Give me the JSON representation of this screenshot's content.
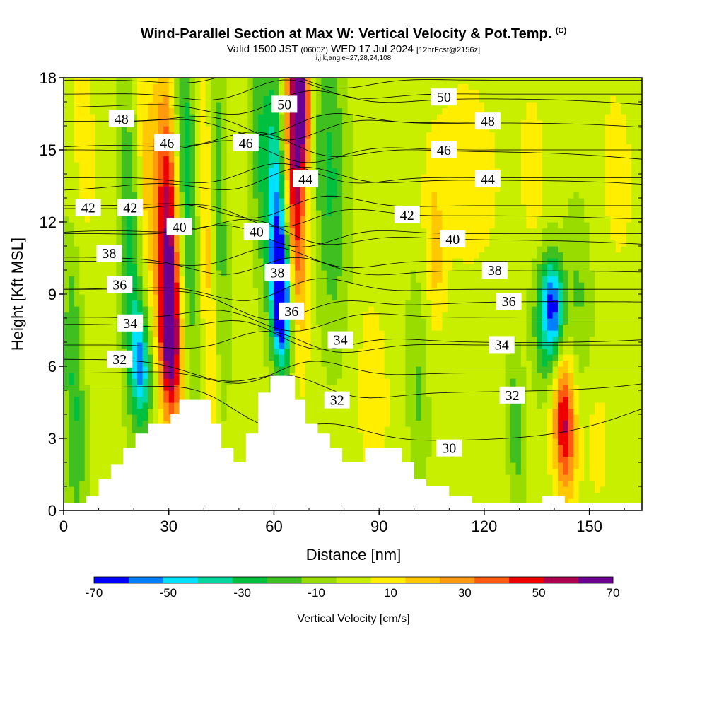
{
  "title": {
    "main": "Wind-Parallel Section at Max W: Vertical Velocity & Pot.Temp.",
    "main_suffix": "(C)",
    "valid_prefix": "Valid 1500 JST",
    "valid_utc": "(0600Z)",
    "valid_date": "WED 17 Jul 2024",
    "forecast": "[12hrFcst@2156z]",
    "indices": "i,j,k,angle=27,28,24,108"
  },
  "chart_data": {
    "type": "heatmap",
    "xlabel": "Distance [nm]",
    "ylabel": "Height [Kft MSL]",
    "xlim": [
      0,
      165
    ],
    "ylim": [
      0,
      18
    ],
    "xticks": [
      0,
      30,
      60,
      90,
      120,
      150
    ],
    "yticks": [
      0,
      3,
      6,
      9,
      12,
      15,
      18
    ],
    "colorbar": {
      "label": "Vertical Velocity [cm/s]",
      "tick_labels": [
        "-70",
        "-50",
        "-30",
        "-10",
        "10",
        "30",
        "50",
        "70"
      ],
      "bounds": [
        -70,
        70
      ],
      "colors": [
        "#0000ff",
        "#0080ff",
        "#00e0ff",
        "#00d8a0",
        "#00c040",
        "#40c020",
        "#99dd00",
        "#c8ee00",
        "#ffee00",
        "#ffc800",
        "#ff9a10",
        "#ff5a10",
        "#ee0000",
        "#b00050",
        "#6a0090"
      ]
    },
    "theta_contours": {
      "unit": "C",
      "labels": [
        {
          "text": "48",
          "x": 16.5,
          "y": 16.3
        },
        {
          "text": "46",
          "x": 29.5,
          "y": 15.3
        },
        {
          "text": "46",
          "x": 52,
          "y": 15.3
        },
        {
          "text": "50",
          "x": 63,
          "y": 16.9
        },
        {
          "text": "50",
          "x": 108.5,
          "y": 17.2
        },
        {
          "text": "48",
          "x": 121,
          "y": 16.2
        },
        {
          "text": "46",
          "x": 108.5,
          "y": 15.0
        },
        {
          "text": "44",
          "x": 69,
          "y": 13.8
        },
        {
          "text": "44",
          "x": 121,
          "y": 13.8
        },
        {
          "text": "42",
          "x": 7,
          "y": 12.6
        },
        {
          "text": "42",
          "x": 19,
          "y": 12.6
        },
        {
          "text": "42",
          "x": 98,
          "y": 12.3
        },
        {
          "text": "40",
          "x": 33,
          "y": 11.8
        },
        {
          "text": "40",
          "x": 55,
          "y": 11.6
        },
        {
          "text": "40",
          "x": 111,
          "y": 11.3
        },
        {
          "text": "38",
          "x": 13,
          "y": 10.7
        },
        {
          "text": "38",
          "x": 61,
          "y": 9.9
        },
        {
          "text": "38",
          "x": 123,
          "y": 10.0
        },
        {
          "text": "36",
          "x": 16,
          "y": 9.4
        },
        {
          "text": "36",
          "x": 65,
          "y": 8.3
        },
        {
          "text": "36",
          "x": 127,
          "y": 8.7
        },
        {
          "text": "34",
          "x": 19,
          "y": 7.8
        },
        {
          "text": "34",
          "x": 79,
          "y": 7.1
        },
        {
          "text": "34",
          "x": 125,
          "y": 6.9
        },
        {
          "text": "32",
          "x": 16,
          "y": 6.3
        },
        {
          "text": "32",
          "x": 78,
          "y": 4.6
        },
        {
          "text": "32",
          "x": 128,
          "y": 4.8
        },
        {
          "text": "30",
          "x": 110,
          "y": 2.6
        }
      ]
    },
    "terrain_profile": [
      [
        0,
        0.3
      ],
      [
        6.5,
        0.3
      ],
      [
        6.5,
        0.6
      ],
      [
        10,
        0.6
      ],
      [
        10,
        1.3
      ],
      [
        13.5,
        1.3
      ],
      [
        13.5,
        1.9
      ],
      [
        17,
        1.9
      ],
      [
        17,
        2.6
      ],
      [
        20.5,
        2.6
      ],
      [
        20.5,
        3.2
      ],
      [
        24,
        3.2
      ],
      [
        24,
        3.6
      ],
      [
        30.5,
        3.6
      ],
      [
        30.5,
        4.0
      ],
      [
        33,
        4.0
      ],
      [
        33,
        4.6
      ],
      [
        42,
        4.6
      ],
      [
        42,
        3.6
      ],
      [
        45,
        3.6
      ],
      [
        45,
        2.6
      ],
      [
        48.5,
        2.6
      ],
      [
        48.5,
        2.0
      ],
      [
        52,
        2.0
      ],
      [
        52,
        3.2
      ],
      [
        55.5,
        3.2
      ],
      [
        55.5,
        4.9
      ],
      [
        59,
        4.9
      ],
      [
        59,
        5.6
      ],
      [
        66,
        5.6
      ],
      [
        66,
        4.6
      ],
      [
        69,
        4.6
      ],
      [
        69,
        3.6
      ],
      [
        72.5,
        3.6
      ],
      [
        72.5,
        3.2
      ],
      [
        76,
        3.2
      ],
      [
        76,
        2.6
      ],
      [
        79.5,
        2.6
      ],
      [
        79.5,
        2.0
      ],
      [
        86,
        2.0
      ],
      [
        86,
        2.6
      ],
      [
        96.5,
        2.6
      ],
      [
        96.5,
        2.0
      ],
      [
        100,
        2.0
      ],
      [
        100,
        1.3
      ],
      [
        103.5,
        1.3
      ],
      [
        103.5,
        1.0
      ],
      [
        110,
        1.0
      ],
      [
        110,
        0.6
      ],
      [
        116.5,
        0.6
      ],
      [
        116.5,
        0.3
      ],
      [
        123,
        0.3
      ],
      [
        123,
        0.3
      ],
      [
        136.5,
        0.3
      ],
      [
        136.5,
        0.6
      ],
      [
        143,
        0.6
      ],
      [
        143,
        0.3
      ],
      [
        165,
        0.3
      ]
    ],
    "w_features": [
      {
        "x": 3,
        "y": 5,
        "sx": 3,
        "sy": 7,
        "val": -25
      },
      {
        "x": 19,
        "y": 11,
        "sx": 3.5,
        "sy": 7,
        "val": -25
      },
      {
        "x": 22,
        "y": 6.0,
        "sx": 3,
        "sy": 2.5,
        "val": -45
      },
      {
        "x": 24,
        "y": 13.5,
        "sx": 3,
        "sy": 5,
        "val": 20
      },
      {
        "x": 30,
        "y": 11,
        "sx": 3.2,
        "sy": 6.5,
        "val": 60
      },
      {
        "x": 30,
        "y": 7,
        "sx": 3,
        "sy": 3,
        "val": 40
      },
      {
        "x": 35,
        "y": 14,
        "sx": 3,
        "sy": 8,
        "val": -30
      },
      {
        "x": 41,
        "y": 12,
        "sx": 2.5,
        "sy": 8,
        "val": 20
      },
      {
        "x": 44,
        "y": 13,
        "sx": 2.5,
        "sy": 8,
        "val": -22
      },
      {
        "x": 56,
        "y": 15,
        "sx": 3,
        "sy": 6,
        "val": -20
      },
      {
        "x": 61,
        "y": 12,
        "sx": 3,
        "sy": 6,
        "val": -50
      },
      {
        "x": 62,
        "y": 9,
        "sx": 2.5,
        "sy": 2.5,
        "val": -65
      },
      {
        "x": 66,
        "y": 14,
        "sx": 3,
        "sy": 6,
        "val": 55
      },
      {
        "x": 68,
        "y": 17,
        "sx": 2.5,
        "sy": 2.5,
        "val": 62
      },
      {
        "x": 76,
        "y": 14,
        "sx": 5,
        "sy": 7,
        "val": -25
      },
      {
        "x": 88,
        "y": 5,
        "sx": 6,
        "sy": 5,
        "val": 8
      },
      {
        "x": 101,
        "y": 5,
        "sx": 3,
        "sy": 5,
        "val": -15
      },
      {
        "x": 106,
        "y": 11,
        "sx": 2.5,
        "sy": 3,
        "val": 18
      },
      {
        "x": 129,
        "y": 3.5,
        "sx": 2.5,
        "sy": 3,
        "val": -22
      },
      {
        "x": 138,
        "y": 7.5,
        "sx": 4,
        "sy": 3,
        "val": -35
      },
      {
        "x": 140,
        "y": 8.5,
        "sx": 3,
        "sy": 2,
        "val": -45
      },
      {
        "x": 143,
        "y": 3.5,
        "sx": 3,
        "sy": 3,
        "val": 45
      },
      {
        "x": 141,
        "y": 5,
        "sx": 4,
        "sy": 3,
        "val": 15
      },
      {
        "x": 147,
        "y": 9,
        "sx": 4,
        "sy": 4,
        "val": -15
      },
      {
        "x": 152,
        "y": 3,
        "sx": 4,
        "sy": 3,
        "val": 8
      },
      {
        "x": 134,
        "y": 14,
        "sx": 3,
        "sy": 3,
        "val": 12
      },
      {
        "x": 115,
        "y": 14,
        "sx": 12,
        "sy": 5,
        "val": 8
      },
      {
        "x": 5,
        "y": 15,
        "sx": 6,
        "sy": 6,
        "val": 7
      },
      {
        "x": 158,
        "y": 14,
        "sx": 6,
        "sy": 5,
        "val": 7
      }
    ]
  }
}
